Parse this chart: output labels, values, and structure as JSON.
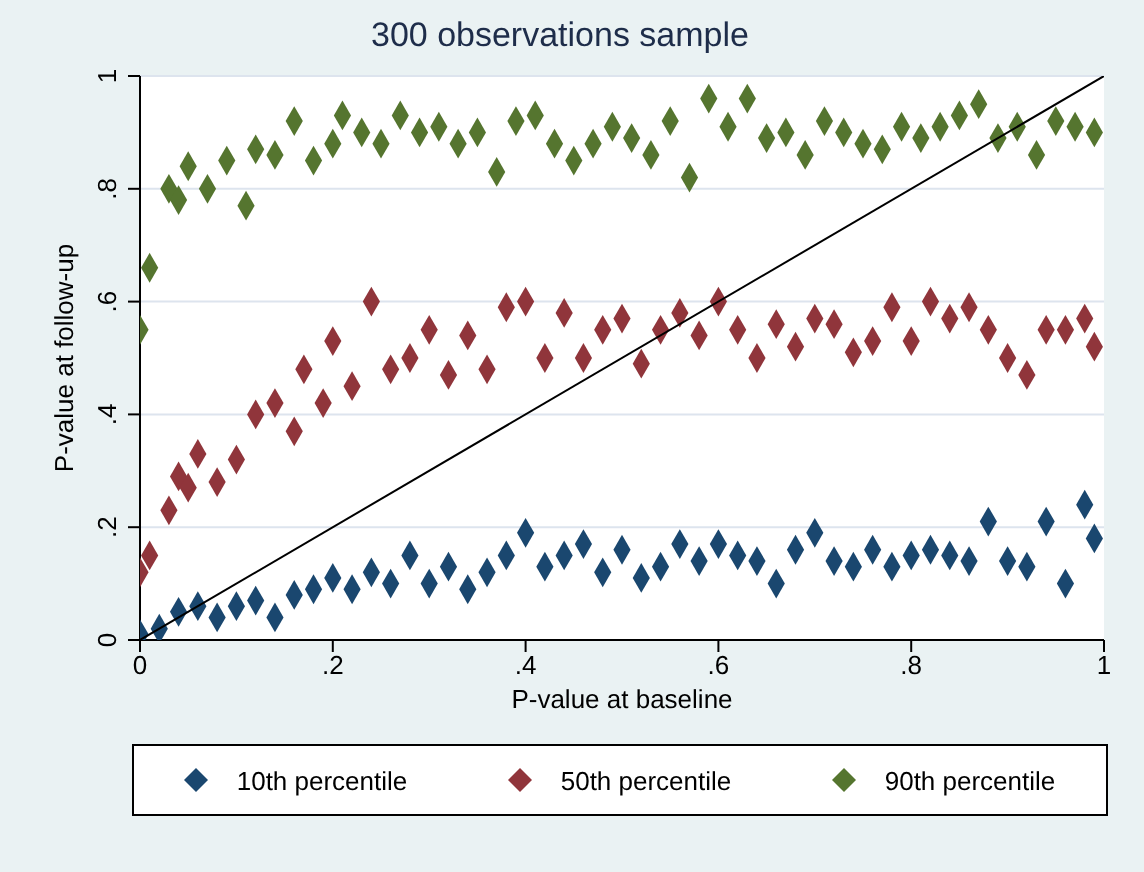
{
  "chart_data": {
    "type": "scatter",
    "title": "300 observations sample",
    "xlabel": "P-value at baseline",
    "ylabel": "P-value at follow-up",
    "xlim": [
      0,
      1
    ],
    "ylim": [
      0,
      1
    ],
    "xticks": [
      0,
      {
        "value": 0.2,
        "label": ".2"
      },
      {
        "value": 0.4,
        "label": ".4"
      },
      {
        "value": 0.6,
        "label": ".6"
      },
      {
        "value": 0.8,
        "label": ".8"
      },
      1
    ],
    "yticks": [
      0,
      {
        "value": 0.2,
        "label": ".2"
      },
      {
        "value": 0.4,
        "label": ".4"
      },
      {
        "value": 0.6,
        "label": ".6"
      },
      {
        "value": 0.8,
        "label": ".8"
      },
      1
    ],
    "grid": "y",
    "legend": "bottom",
    "series": [
      {
        "name": "10th percentile",
        "color": "#1a476f",
        "marker": "diamond",
        "x": [
          0,
          0.02,
          0.04,
          0.06,
          0.08,
          0.1,
          0.12,
          0.14,
          0.16,
          0.18,
          0.2,
          0.22,
          0.24,
          0.26,
          0.28,
          0.3,
          0.32,
          0.34,
          0.36,
          0.38,
          0.4,
          0.42,
          0.44,
          0.46,
          0.48,
          0.5,
          0.52,
          0.54,
          0.56,
          0.58,
          0.6,
          0.62,
          0.64,
          0.66,
          0.68,
          0.7,
          0.72,
          0.74,
          0.76,
          0.78,
          0.8,
          0.82,
          0.84,
          0.86,
          0.88,
          0.9,
          0.92,
          0.94,
          0.96,
          0.98,
          0.99
        ],
        "values": [
          0.01,
          0.02,
          0.05,
          0.06,
          0.04,
          0.06,
          0.07,
          0.04,
          0.08,
          0.09,
          0.11,
          0.09,
          0.12,
          0.1,
          0.15,
          0.1,
          0.13,
          0.09,
          0.12,
          0.15,
          0.19,
          0.13,
          0.15,
          0.17,
          0.12,
          0.16,
          0.11,
          0.13,
          0.17,
          0.14,
          0.17,
          0.15,
          0.14,
          0.1,
          0.16,
          0.19,
          0.14,
          0.13,
          0.16,
          0.13,
          0.15,
          0.16,
          0.15,
          0.14,
          0.21,
          0.14,
          0.13,
          0.21,
          0.1,
          0.24,
          0.18
        ]
      },
      {
        "name": "50th percentile",
        "color": "#90353b",
        "marker": "diamond",
        "x": [
          0,
          0.01,
          0.03,
          0.04,
          0.05,
          0.06,
          0.08,
          0.1,
          0.12,
          0.14,
          0.16,
          0.17,
          0.19,
          0.2,
          0.22,
          0.24,
          0.26,
          0.28,
          0.3,
          0.32,
          0.34,
          0.36,
          0.38,
          0.4,
          0.42,
          0.44,
          0.46,
          0.48,
          0.5,
          0.52,
          0.54,
          0.56,
          0.58,
          0.6,
          0.62,
          0.64,
          0.66,
          0.68,
          0.7,
          0.72,
          0.74,
          0.76,
          0.78,
          0.8,
          0.82,
          0.84,
          0.86,
          0.88,
          0.9,
          0.92,
          0.94,
          0.96,
          0.98,
          0.99
        ],
        "values": [
          0.12,
          0.15,
          0.23,
          0.29,
          0.27,
          0.33,
          0.28,
          0.32,
          0.4,
          0.42,
          0.37,
          0.48,
          0.42,
          0.53,
          0.45,
          0.6,
          0.48,
          0.5,
          0.55,
          0.47,
          0.54,
          0.48,
          0.59,
          0.6,
          0.5,
          0.58,
          0.5,
          0.55,
          0.57,
          0.49,
          0.55,
          0.58,
          0.54,
          0.6,
          0.55,
          0.5,
          0.56,
          0.52,
          0.57,
          0.56,
          0.51,
          0.53,
          0.59,
          0.53,
          0.6,
          0.57,
          0.59,
          0.55,
          0.5,
          0.47,
          0.55,
          0.55,
          0.57,
          0.52
        ]
      },
      {
        "name": "90th percentile",
        "color": "#55752f",
        "marker": "diamond",
        "x": [
          0,
          0.01,
          0.03,
          0.04,
          0.05,
          0.07,
          0.09,
          0.11,
          0.12,
          0.14,
          0.16,
          0.18,
          0.2,
          0.21,
          0.23,
          0.25,
          0.27,
          0.29,
          0.31,
          0.33,
          0.35,
          0.37,
          0.39,
          0.41,
          0.43,
          0.45,
          0.47,
          0.49,
          0.51,
          0.53,
          0.55,
          0.57,
          0.59,
          0.61,
          0.63,
          0.65,
          0.67,
          0.69,
          0.71,
          0.73,
          0.75,
          0.77,
          0.79,
          0.81,
          0.83,
          0.85,
          0.87,
          0.89,
          0.91,
          0.93,
          0.95,
          0.97,
          0.99
        ],
        "values": [
          0.55,
          0.66,
          0.8,
          0.78,
          0.84,
          0.8,
          0.85,
          0.77,
          0.87,
          0.86,
          0.92,
          0.85,
          0.88,
          0.93,
          0.9,
          0.88,
          0.93,
          0.9,
          0.91,
          0.88,
          0.9,
          0.83,
          0.92,
          0.93,
          0.88,
          0.85,
          0.88,
          0.91,
          0.89,
          0.86,
          0.92,
          0.82,
          0.96,
          0.91,
          0.96,
          0.89,
          0.9,
          0.86,
          0.92,
          0.9,
          0.88,
          0.87,
          0.91,
          0.89,
          0.91,
          0.93,
          0.95,
          0.89,
          0.91,
          0.86,
          0.92,
          0.91,
          0.9
        ]
      },
      {
        "type": "line",
        "color": "#000000",
        "marker": "none",
        "x": [
          0,
          1
        ],
        "values": [
          0,
          1
        ]
      }
    ]
  }
}
